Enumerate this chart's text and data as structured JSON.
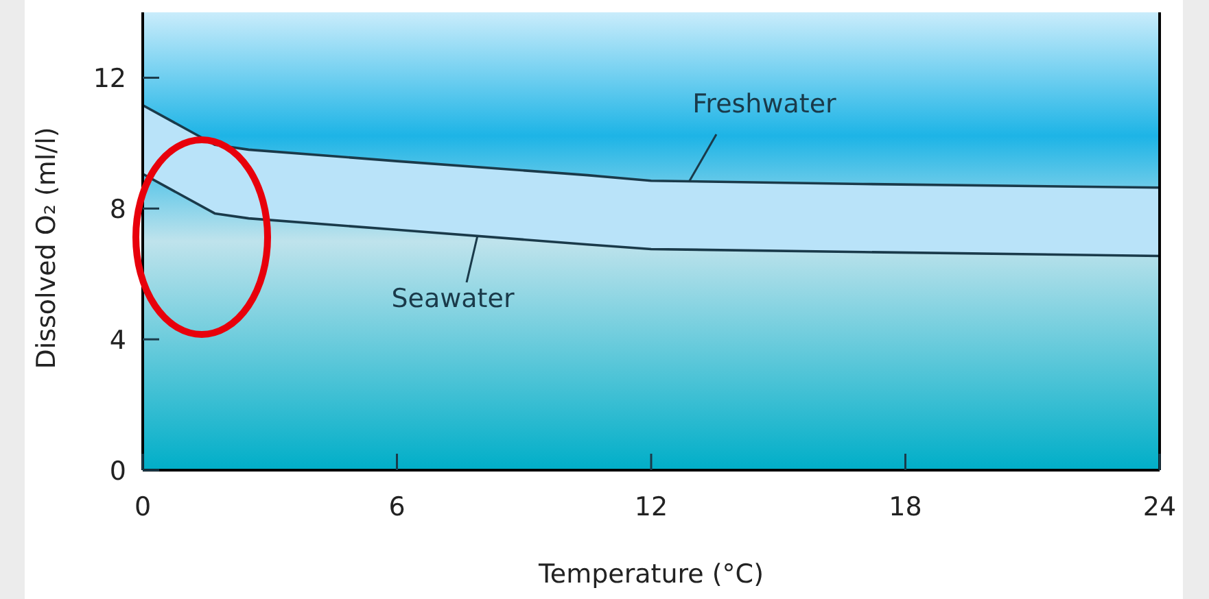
{
  "chart_data": {
    "type": "line",
    "xlabel": "Temperature (°C)",
    "ylabel": "Dissolved O₂ (ml/l)",
    "x": [
      0,
      1.7,
      2.5,
      6,
      10.5,
      12,
      17,
      24
    ],
    "series": [
      {
        "name": "Freshwater",
        "color": "#1a3a4a",
        "values": [
          11.16,
          9.95,
          9.8,
          9.45,
          9.02,
          8.85,
          8.75,
          8.64
        ]
      },
      {
        "name": "Seawater",
        "color": "#1a3a4a",
        "values": [
          9.06,
          7.85,
          7.7,
          7.35,
          6.9,
          6.76,
          6.67,
          6.55
        ]
      }
    ],
    "xlim": [
      0,
      24
    ],
    "xticks": [
      0,
      6,
      12,
      18,
      24
    ],
    "ylim": [
      0,
      14
    ],
    "yticks": [
      0,
      4,
      8,
      12
    ],
    "grid": false,
    "marker": "none",
    "line_style": "solid"
  }
}
